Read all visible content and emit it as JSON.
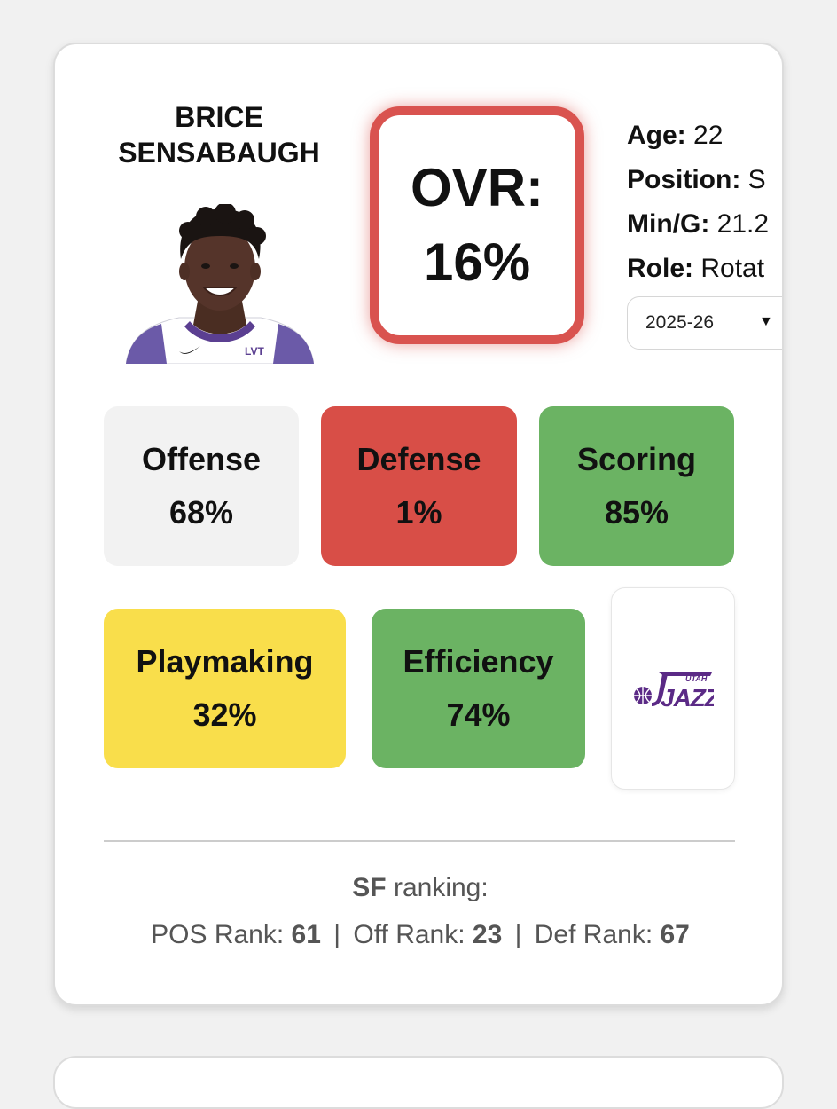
{
  "player": {
    "first_name": "BRICE",
    "last_name": "SENSABAUGH"
  },
  "ovr": {
    "label": "OVR:",
    "value": "16%",
    "color": "#d9534f"
  },
  "info": {
    "age_label": "Age:",
    "age_value": "22",
    "position_label": "Position:",
    "position_value": "S",
    "min_label": "Min/G:",
    "min_value": "21.2",
    "role_label": "Role:",
    "role_value": "Rotat"
  },
  "season_select": {
    "selected": "2025-26",
    "caret": "▼"
  },
  "ratings": {
    "offense": {
      "label": "Offense",
      "value": "68%",
      "color": "#f2f2f2"
    },
    "defense": {
      "label": "Defense",
      "value": "1%",
      "color": "#d84e47"
    },
    "scoring": {
      "label": "Scoring",
      "value": "85%",
      "color": "#6bb363"
    },
    "playmaking": {
      "label": "Playmaking",
      "value": "32%",
      "color": "#f9de4b"
    },
    "efficiency": {
      "label": "Efficiency",
      "value": "74%",
      "color": "#6bb363"
    }
  },
  "team_logo": {
    "icon": "utah-jazz-logo",
    "text_small": "UTAH",
    "text_large": "JAZZ",
    "color": "#5b2a86"
  },
  "ranking": {
    "position": "SF",
    "title_suffix": "ranking:",
    "pos_label": "POS Rank:",
    "pos_value": "61",
    "off_label": "Off Rank:",
    "off_value": "23",
    "def_label": "Def Rank:",
    "def_value": "67",
    "separator": "|"
  }
}
